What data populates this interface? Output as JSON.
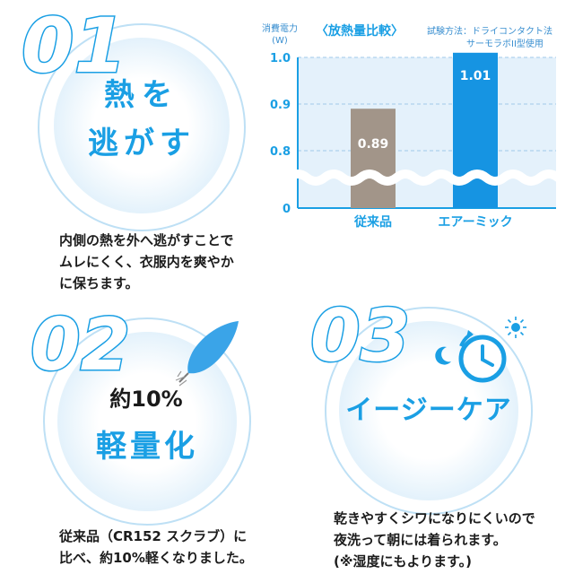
{
  "features": [
    {
      "number": "01",
      "title_lines": [
        "熱を",
        "逃がす"
      ],
      "description_lines": [
        "内側の熱を外へ逃がすことで",
        "ムレにくく、衣服内を爽やか",
        "に保ちます。"
      ]
    },
    {
      "number": "02",
      "title_lines": [
        "約10%",
        "軽量化"
      ],
      "description_lines": [
        "従来品（CR152 スクラブ）に",
        "比べ、約10%軽くなりました。"
      ]
    },
    {
      "number": "03",
      "title_lines": [
        "イージーケア"
      ],
      "description_lines": [
        "乾きやすくシワになりにくいので",
        "夜洗って朝には着られます。",
        "(※湿度にもよります。)"
      ]
    }
  ],
  "chart_data": {
    "type": "bar",
    "title": "〈放熱量比較〉",
    "ylabel": "消費電力\n(W)",
    "test_method_line1": "試験方法：ドライコンタクト法",
    "test_method_line2": "サーモラボII型使用",
    "categories": [
      "従来品",
      "エアーミック"
    ],
    "values": [
      0.89,
      1.01
    ],
    "value_labels": [
      "0.89",
      "1.01"
    ],
    "bar_colors": [
      "#a29589",
      "#1694e2"
    ],
    "yticks": [
      "1.0",
      "0.9",
      "0.8",
      "0"
    ],
    "ylim": [
      0.75,
      1.0
    ],
    "axis_break": true,
    "grid": true
  },
  "colors": {
    "accent": "#1a9fe4",
    "number_stroke": "#1a9fe4"
  },
  "icons": [
    "feather-icon",
    "clock-icon",
    "moon-icon",
    "sun-icon"
  ]
}
